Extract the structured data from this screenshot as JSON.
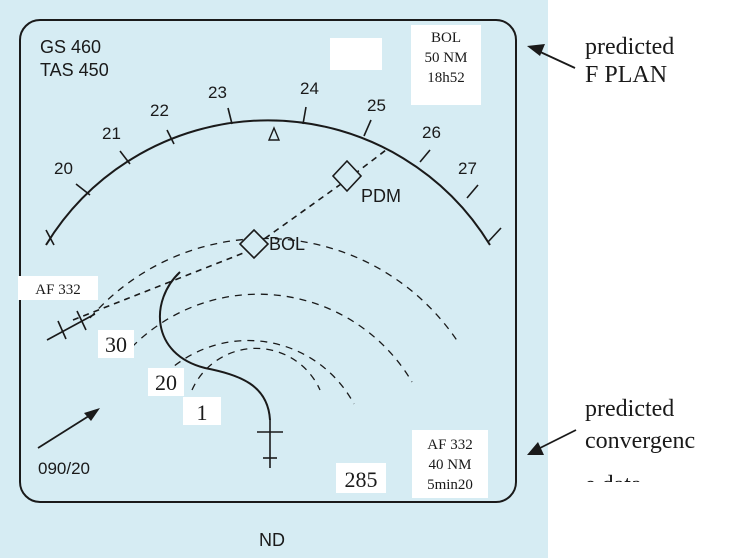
{
  "display": {
    "ground_speed": "GS 460",
    "true_airspeed": "TAS 450",
    "wind": "090/20",
    "footer_label": "ND",
    "heading_scale": [
      "20",
      "21",
      "22",
      "23",
      "24",
      "25",
      "26",
      "27"
    ],
    "waypoints": [
      "PDM",
      "BOL"
    ],
    "traffic_callsign": "AF 332",
    "range_labels": [
      "30",
      "20",
      "1"
    ],
    "heading_value": "285"
  },
  "next_waypoint_box": {
    "name": "BOL",
    "distance": "50 NM",
    "eta": "18h52"
  },
  "convergence_box": {
    "callsign": "AF 332",
    "distance": "40 NM",
    "time": "5min20"
  },
  "annotations": {
    "top": [
      "predicted",
      "F PLAN"
    ],
    "bottom": [
      "predicted",
      "convergenc",
      "e data"
    ]
  },
  "colors": {
    "screen_background": "#d6ecf3",
    "ink": "#1a1a1a"
  }
}
